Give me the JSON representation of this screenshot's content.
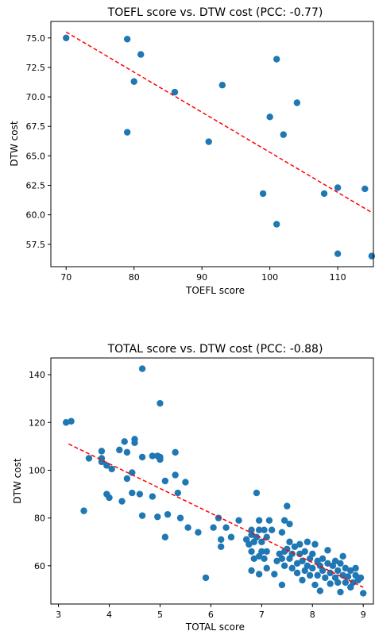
{
  "chart_data": [
    {
      "type": "scatter",
      "title": "TOEFL score vs. DTW cost (PCC: -0.77)",
      "xlabel": "TOEFL score",
      "ylabel": "DTW cost",
      "xlim": [
        67.75,
        115.25
      ],
      "ylim": [
        55.6,
        76.4
      ],
      "xticks": [
        70,
        80,
        90,
        100,
        110
      ],
      "yticks": [
        57.5,
        60.0,
        62.5,
        65.0,
        67.5,
        70.0,
        72.5,
        75.0
      ],
      "xtick_labels": [
        "70",
        "80",
        "90",
        "100",
        "110"
      ],
      "ytick_labels": [
        "57.5",
        "60.0",
        "62.5",
        "65.0",
        "67.5",
        "70.0",
        "72.5",
        "75.0"
      ],
      "grid": false,
      "point_color": "#1f77b4",
      "trend_color": "#ff0000",
      "trend": {
        "x": [
          70,
          115
        ],
        "y": [
          75.5,
          60.2
        ]
      },
      "points": [
        [
          70,
          75.0
        ],
        [
          79,
          74.9
        ],
        [
          81,
          73.6
        ],
        [
          80,
          71.3
        ],
        [
          86,
          70.4
        ],
        [
          79,
          67.0
        ],
        [
          93,
          71.0
        ],
        [
          91,
          66.2
        ],
        [
          101,
          73.2
        ],
        [
          104,
          69.5
        ],
        [
          100,
          68.3
        ],
        [
          102,
          66.8
        ],
        [
          99,
          61.8
        ],
        [
          101,
          59.2
        ],
        [
          108,
          61.8
        ],
        [
          110,
          62.3
        ],
        [
          114,
          62.2
        ],
        [
          110,
          56.7
        ],
        [
          115,
          56.5
        ]
      ]
    },
    {
      "type": "scatter",
      "title": "TOTAL score vs. DTW cost (PCC: -0.88)",
      "xlabel": "TOTAL score",
      "ylabel": "DTW cost",
      "xlim": [
        2.85,
        9.2
      ],
      "ylim": [
        44,
        147
      ],
      "xticks": [
        3,
        4,
        5,
        6,
        7,
        8,
        9
      ],
      "yticks": [
        60,
        80,
        100,
        120,
        140
      ],
      "xtick_labels": [
        "3",
        "4",
        "5",
        "6",
        "7",
        "8",
        "9"
      ],
      "ytick_labels": [
        "60",
        "80",
        "100",
        "120",
        "140"
      ],
      "grid": false,
      "point_color": "#1f77b4",
      "trend_color": "#ff0000",
      "trend": {
        "x": [
          3.2,
          9.0
        ],
        "y": [
          111,
          51
        ]
      },
      "points": [
        [
          3.15,
          120
        ],
        [
          3.25,
          120.5
        ],
        [
          4.65,
          142.5
        ],
        [
          5.0,
          128
        ],
        [
          3.5,
          83
        ],
        [
          3.6,
          105
        ],
        [
          3.85,
          108
        ],
        [
          3.85,
          105
        ],
        [
          3.85,
          103.5
        ],
        [
          3.95,
          102
        ],
        [
          4.05,
          100.5
        ],
        [
          4.2,
          108.5
        ],
        [
          4.3,
          112
        ],
        [
          4.35,
          107.5
        ],
        [
          4.35,
          96.5
        ],
        [
          4.45,
          99
        ],
        [
          4.5,
          113
        ],
        [
          4.5,
          111.5
        ],
        [
          4.65,
          105.5
        ],
        [
          4.85,
          106
        ],
        [
          4.95,
          106
        ],
        [
          5.0,
          104.5
        ],
        [
          5.0,
          105.5
        ],
        [
          5.3,
          107.5
        ],
        [
          3.95,
          90
        ],
        [
          4.0,
          88.5
        ],
        [
          4.25,
          87
        ],
        [
          4.45,
          90.5
        ],
        [
          4.6,
          90
        ],
        [
          4.85,
          89
        ],
        [
          5.1,
          95.5
        ],
        [
          5.35,
          90.5
        ],
        [
          5.5,
          95
        ],
        [
          5.3,
          98
        ],
        [
          4.65,
          81
        ],
        [
          4.95,
          80.5
        ],
        [
          5.15,
          81.5
        ],
        [
          5.4,
          80
        ],
        [
          5.55,
          76
        ],
        [
          5.75,
          74
        ],
        [
          5.1,
          72
        ],
        [
          5.9,
          55
        ],
        [
          6.05,
          76
        ],
        [
          6.15,
          80
        ],
        [
          6.2,
          71
        ],
        [
          6.2,
          68
        ],
        [
          6.3,
          76
        ],
        [
          6.4,
          72
        ],
        [
          6.55,
          79
        ],
        [
          6.7,
          71
        ],
        [
          6.75,
          69
        ],
        [
          6.8,
          75
        ],
        [
          6.8,
          73
        ],
        [
          6.85,
          70
        ],
        [
          6.9,
          90.5
        ],
        [
          6.9,
          72
        ],
        [
          6.95,
          79
        ],
        [
          6.95,
          75
        ],
        [
          7.05,
          75
        ],
        [
          7.0,
          70
        ],
        [
          7.1,
          72
        ],
        [
          7.15,
          79
        ],
        [
          7.2,
          75
        ],
        [
          6.8,
          66
        ],
        [
          6.85,
          63
        ],
        [
          6.95,
          64
        ],
        [
          7.0,
          66
        ],
        [
          7.05,
          63
        ],
        [
          7.1,
          66
        ],
        [
          6.8,
          58
        ],
        [
          6.95,
          56.5
        ],
        [
          7.1,
          59
        ],
        [
          7.25,
          56.5
        ],
        [
          7.3,
          62
        ],
        [
          7.35,
          65
        ],
        [
          7.4,
          63
        ],
        [
          7.4,
          52
        ],
        [
          7.45,
          60
        ],
        [
          7.45,
          66
        ],
        [
          7.4,
          74
        ],
        [
          7.45,
          79
        ],
        [
          7.5,
          85
        ],
        [
          7.55,
          77.5
        ],
        [
          7.55,
          70
        ],
        [
          7.5,
          67
        ],
        [
          7.55,
          63
        ],
        [
          7.6,
          59
        ],
        [
          7.6,
          65
        ],
        [
          7.65,
          68
        ],
        [
          7.7,
          61
        ],
        [
          7.7,
          57
        ],
        [
          7.75,
          65
        ],
        [
          7.75,
          69
        ],
        [
          7.8,
          62
        ],
        [
          7.8,
          54
        ],
        [
          7.85,
          58
        ],
        [
          7.85,
          66
        ],
        [
          7.9,
          60
        ],
        [
          7.9,
          70
        ],
        [
          7.95,
          63
        ],
        [
          7.95,
          56
        ],
        [
          8.0,
          65
        ],
        [
          8.0,
          59
        ],
        [
          8.05,
          69
        ],
        [
          8.05,
          52
        ],
        [
          8.1,
          62
        ],
        [
          8.1,
          56
        ],
        [
          8.15,
          60
        ],
        [
          8.15,
          49.5
        ],
        [
          8.2,
          63
        ],
        [
          8.2,
          58
        ],
        [
          8.25,
          55
        ],
        [
          8.3,
          61
        ],
        [
          8.3,
          66.5
        ],
        [
          8.35,
          57
        ],
        [
          8.35,
          52.5
        ],
        [
          8.4,
          60
        ],
        [
          8.45,
          55
        ],
        [
          8.45,
          62
        ],
        [
          8.5,
          58
        ],
        [
          8.5,
          53
        ],
        [
          8.55,
          61
        ],
        [
          8.55,
          49
        ],
        [
          8.6,
          64
        ],
        [
          8.6,
          56
        ],
        [
          8.65,
          59
        ],
        [
          8.65,
          53
        ],
        [
          8.7,
          55.5
        ],
        [
          8.75,
          58
        ],
        [
          8.75,
          51
        ],
        [
          8.8,
          53
        ],
        [
          8.85,
          59
        ],
        [
          8.85,
          56
        ],
        [
          8.9,
          54
        ],
        [
          8.95,
          55
        ],
        [
          9.0,
          48.5
        ]
      ]
    }
  ]
}
